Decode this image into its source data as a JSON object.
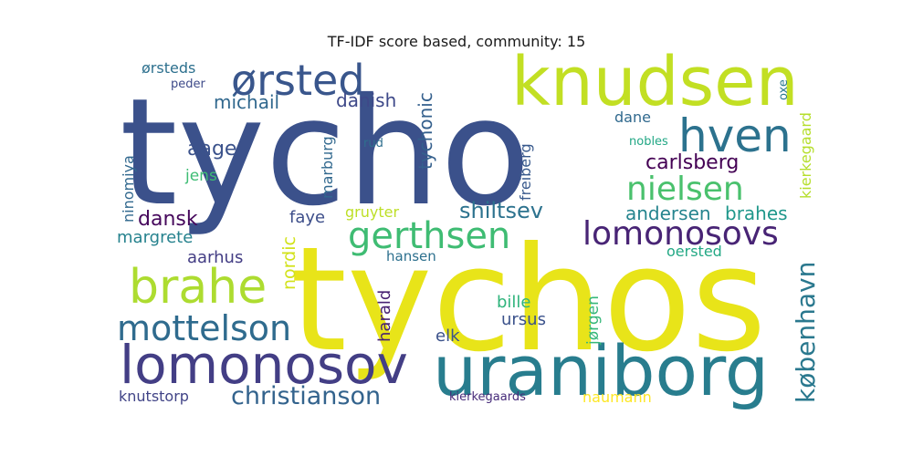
{
  "title": "TF-IDF score based, community: 15",
  "words": [
    {
      "text": "tycho",
      "color": "#3b518b"
    },
    {
      "text": "tychos",
      "color": "#e8e419"
    },
    {
      "text": "knudsen",
      "color": "#c2df23"
    },
    {
      "text": "uraniborg",
      "color": "#287d8e"
    },
    {
      "text": "lomonosov",
      "color": "#433e85"
    },
    {
      "text": "ørsted",
      "color": "#39568c"
    },
    {
      "text": "hven",
      "color": "#2c728e"
    },
    {
      "text": "brahe",
      "color": "#addc30"
    },
    {
      "text": "mottelson",
      "color": "#2f6b8e"
    },
    {
      "text": "gerthsen",
      "color": "#3fbc73"
    },
    {
      "text": "lomonosovs",
      "color": "#482475"
    },
    {
      "text": "nielsen",
      "color": "#4ac16d"
    },
    {
      "text": "christianson",
      "color": "#33638d"
    },
    {
      "text": "carlsberg",
      "color": "#2a788e"
    },
    {
      "text": "københavn",
      "color": "#440154"
    },
    {
      "text": "michail",
      "color": "#31688e"
    },
    {
      "text": "aage",
      "color": "#3b528b"
    },
    {
      "text": "danish",
      "color": "#3e4989"
    },
    {
      "text": "tychonic",
      "color": "#35608d"
    },
    {
      "text": "dansk",
      "color": "#46085c"
    },
    {
      "text": "shiltsev",
      "color": "#2c728e"
    },
    {
      "text": "andersen",
      "color": "#25848e"
    },
    {
      "text": "brahes",
      "color": "#1f978b"
    },
    {
      "text": "margrete",
      "color": "#26828e"
    },
    {
      "text": "aarhus",
      "color": "#433d84"
    },
    {
      "text": "faye",
      "color": "#3d4e8a"
    },
    {
      "text": "oersted",
      "color": "#22a884"
    },
    {
      "text": "ørsteds",
      "color": "#2d708e"
    },
    {
      "text": "peder",
      "color": "#3e4a89"
    },
    {
      "text": "dane",
      "color": "#30698e"
    },
    {
      "text": "nobles",
      "color": "#22a785"
    },
    {
      "text": "rud",
      "color": "#2e6f8e"
    },
    {
      "text": "jens",
      "color": "#3dbc74"
    },
    {
      "text": "gruyter",
      "color": "#bddf26"
    },
    {
      "text": "hansen",
      "color": "#2d708e"
    },
    {
      "text": "bille",
      "color": "#2fb47c"
    },
    {
      "text": "ursus",
      "color": "#3b528b"
    },
    {
      "text": "elk",
      "color": "#3b528b"
    },
    {
      "text": "naumann",
      "color": "#fde725"
    },
    {
      "text": "knutstorp",
      "color": "#414487"
    },
    {
      "text": "kierkegaards",
      "color": "#472c7a"
    },
    {
      "text": "ninomiya",
      "color": "#31688e"
    },
    {
      "text": "marburg",
      "color": "#31688e"
    },
    {
      "text": "freiberg",
      "color": "#38598c"
    },
    {
      "text": "nordic",
      "color": "#d2e21b"
    },
    {
      "text": "harald",
      "color": "#482173"
    },
    {
      "text": "jørgen",
      "color": "#35b779"
    },
    {
      "text": "oxe",
      "color": "#2a788e"
    },
    {
      "text": "kierkegaard",
      "color": "#b5de2b"
    }
  ]
}
